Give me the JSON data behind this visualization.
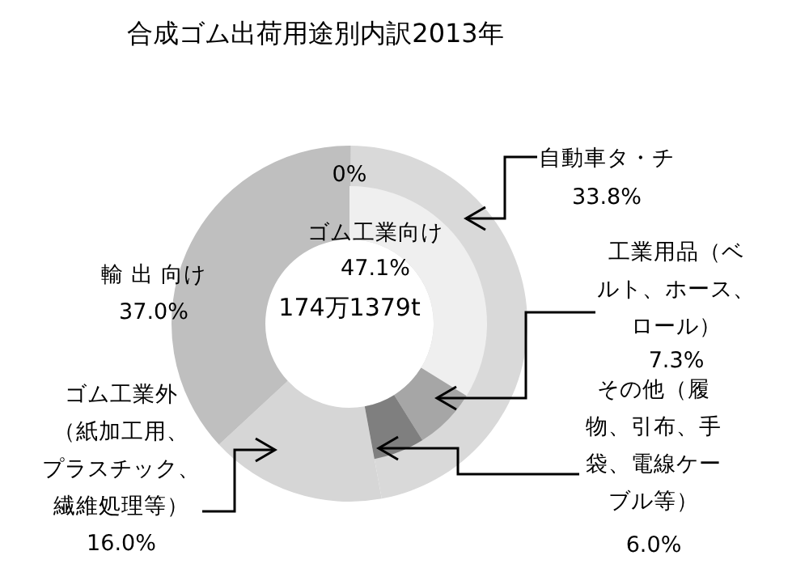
{
  "chart_data": [
    {
      "type": "donut",
      "title": "合成ゴム出荷用途別内訳2013年",
      "categories": [
        "ゴム工業向け",
        "ゴム工業外（紙加工用、プラスチック、繊維処理等）",
        "輸 出 向け"
      ],
      "values": [
        47.1,
        16.0,
        37.0
      ],
      "colors": [
        "#d9d9d9",
        "#d6d6d6",
        "#bfbfbf"
      ],
      "value_labels": [
        "47.1%",
        "16.0%",
        "37.0%"
      ],
      "annotations": [
        "174万1379t"
      ]
    },
    {
      "type": "donut",
      "categories": [
        "自動車タ・チ",
        "工業用品（ベルト、ホース、ロール）",
        "その他（履物、引布、手袋、電線ケーブル等）",
        null
      ],
      "values": [
        33.8,
        7.3,
        6.0,
        0
      ],
      "colors": [
        "#efefef",
        "#a6a6a6",
        "#7f7f7f",
        "#bfbfbf"
      ],
      "value_labels": [
        "33.8%",
        "7.3%",
        "6.0%",
        "0%"
      ]
    }
  ]
}
